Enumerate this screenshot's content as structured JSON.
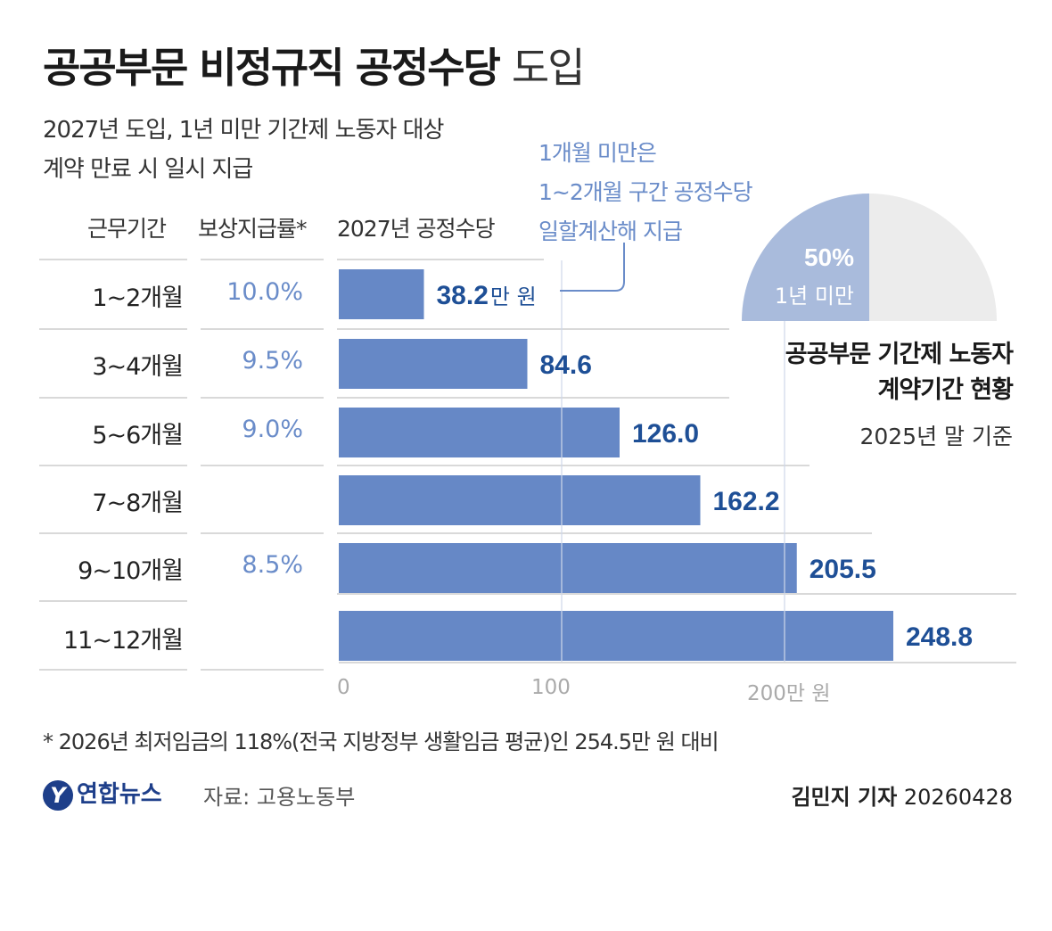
{
  "title": {
    "bold": "공공부문 비정규직 공정수당",
    "light": "도입"
  },
  "subtitle": {
    "line1": "2027년 도입, 1년 미만 기간제 노동자 대상",
    "line2": "계약 만료 시 일시 지급"
  },
  "callout": {
    "line1": "1개월 미만은",
    "line2": "1~2개월 구간 공정수당",
    "line3": "일할계산해 지급"
  },
  "headers": {
    "period": "근무기간",
    "rate": "보상지급률*",
    "allowance": "2027년 공정수당"
  },
  "rows": [
    {
      "period": "1~2개월",
      "rate": "10.0%"
    },
    {
      "period": "3~4개월",
      "rate": "9.5%"
    },
    {
      "period": "5~6개월",
      "rate": "9.0%"
    },
    {
      "period": "7~8개월",
      "rate": ""
    },
    {
      "period": "9~10개월",
      "rate": "8.5%"
    },
    {
      "period": "11~12개월",
      "rate": ""
    }
  ],
  "chart_data": [
    {
      "type": "bar",
      "orientation": "horizontal",
      "categories": [
        "1~2개월",
        "3~4개월",
        "5~6개월",
        "7~8개월",
        "9~10개월",
        "11~12개월"
      ],
      "values": [
        38.2,
        84.6,
        126.0,
        162.2,
        205.5,
        248.8
      ],
      "value_labels": [
        "38.2",
        "84.6",
        "126.0",
        "162.2",
        "205.5",
        "248.8"
      ],
      "first_value_unit": "만 원",
      "xlim": [
        0,
        300
      ],
      "xticks": [
        "0",
        "100",
        "200만 원"
      ],
      "xtick_values": [
        0,
        100,
        200
      ],
      "grid": true,
      "bar_color": "#6688c6",
      "label_color": "#1e4f96"
    },
    {
      "type": "pie",
      "shape": "semicircle",
      "slices": [
        {
          "label": "1년 미만",
          "value": 50,
          "value_label": "50%",
          "color": "#a9bbdc"
        },
        {
          "label": "",
          "value": 50,
          "color": "#ececec"
        }
      ]
    }
  ],
  "inset": {
    "title_line1": "공공부문 기간제 노동자",
    "title_line2": "계약기간 현황",
    "date": "2025년 말 기준"
  },
  "footnote": "* 2026년 최저임금의 118%(전국 지방정부 생활임금 평균)인  254.5만 원 대비",
  "logo": {
    "mark": "Y",
    "text": "연합뉴스"
  },
  "source": "자료: 고용노동부",
  "byline": {
    "name": "김민지 기자",
    "date": "20260428"
  }
}
